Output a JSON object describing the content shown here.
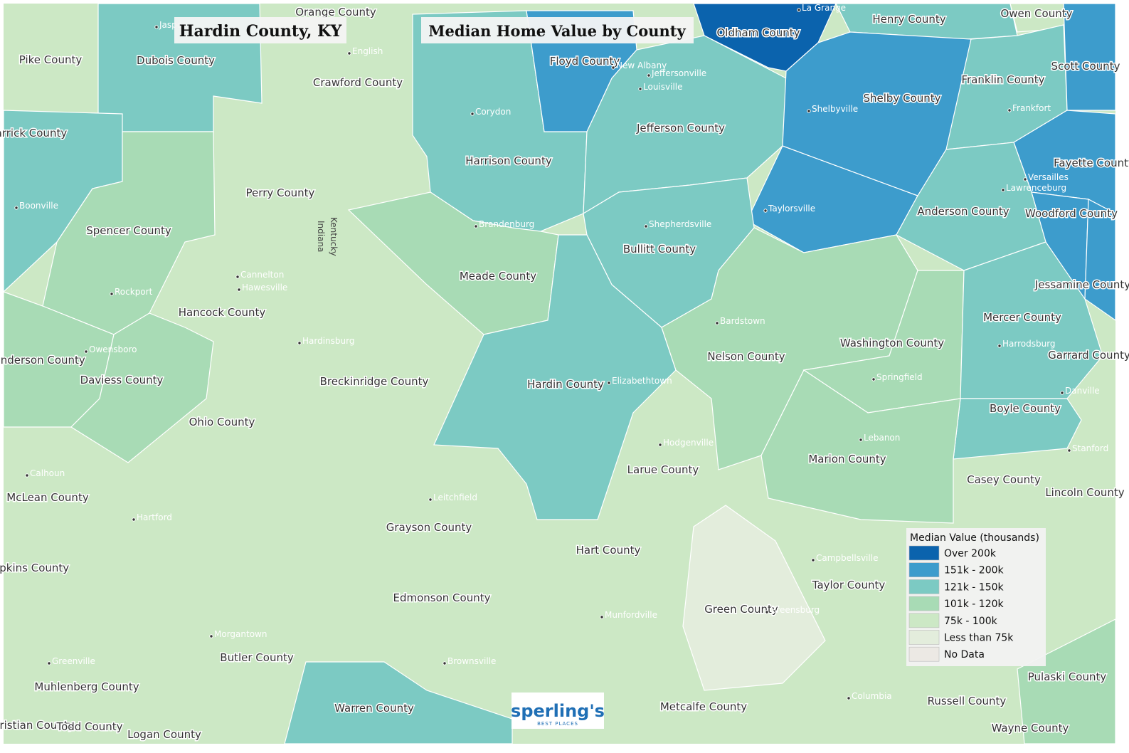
{
  "header": {
    "title": "Hardin County, KY",
    "subtitle": "Median Home Value by County"
  },
  "map": {
    "counties": [
      {
        "name": "Pike County",
        "color": "#cce8c5"
      },
      {
        "name": "Dubois County",
        "color": "#7ccac3"
      },
      {
        "name": "Orange County",
        "color": "#cce8c5"
      },
      {
        "name": "Crawford County",
        "color": "#cce8c5"
      },
      {
        "name": "Warrick County",
        "color": "#7ccac3"
      },
      {
        "name": "Spencer County",
        "color": "#a8dbb5"
      },
      {
        "name": "Perry County",
        "color": "#cce8c5"
      },
      {
        "name": "Harrison County",
        "color": "#7ccac3"
      },
      {
        "name": "Floyd County",
        "color": "#3d9ccc"
      },
      {
        "name": "Oldham County",
        "color": "#0b63ad"
      },
      {
        "name": "Henry County",
        "color": "#7ccac3"
      },
      {
        "name": "Owen County",
        "color": "#cce8c5"
      },
      {
        "name": "Jefferson County",
        "color": "#7ccac3"
      },
      {
        "name": "Shelby County",
        "color": "#3d9ccc"
      },
      {
        "name": "Franklin County",
        "color": "#7ccac3"
      },
      {
        "name": "Scott County",
        "color": "#3d9ccc"
      },
      {
        "name": "Fayette County",
        "color": "#3d9ccc"
      },
      {
        "name": "Woodford County",
        "color": "#3d9ccc"
      },
      {
        "name": "Jessamine County",
        "color": "#3d9ccc"
      },
      {
        "name": "Anderson County",
        "color": "#7ccac3"
      },
      {
        "name": "Bullitt County",
        "color": "#7ccac3"
      },
      {
        "name": "Meade County",
        "color": "#a8dbb5"
      },
      {
        "name": "Hardin County",
        "color": "#7ccac3"
      },
      {
        "name": "Nelson County",
        "color": "#a8dbb5"
      },
      {
        "name": "Washington County",
        "color": "#a8dbb5"
      },
      {
        "name": "Mercer County",
        "color": "#7ccac3"
      },
      {
        "name": "Garrard County",
        "color": "#cce8c5"
      },
      {
        "name": "Boyle County",
        "color": "#7ccac3"
      },
      {
        "name": "Marion County",
        "color": "#a8dbb5"
      },
      {
        "name": "Larue County",
        "color": "#cce8c5"
      },
      {
        "name": "Hancock County",
        "color": "#cce8c5"
      },
      {
        "name": "Henderson County",
        "color": "#a8dbb5"
      },
      {
        "name": "Daviess County",
        "color": "#a8dbb5"
      },
      {
        "name": "Breckinridge County",
        "color": "#cce8c5"
      },
      {
        "name": "Ohio County",
        "color": "#cce8c5"
      },
      {
        "name": "McLean County",
        "color": "#cce8c5"
      },
      {
        "name": "Grayson County",
        "color": "#cce8c5"
      },
      {
        "name": "Hart County",
        "color": "#cce8c5"
      },
      {
        "name": "Taylor County",
        "color": "#cce8c5"
      },
      {
        "name": "Casey County",
        "color": "#cce8c5"
      },
      {
        "name": "Lincoln County",
        "color": "#cce8c5"
      },
      {
        "name": "Green County",
        "color": "#e3eddc"
      },
      {
        "name": "Hopkins County",
        "color": "#cce8c5"
      },
      {
        "name": "Edmonson County",
        "color": "#cce8c5"
      },
      {
        "name": "Butler County",
        "color": "#cce8c5"
      },
      {
        "name": "Muhlenberg County",
        "color": "#cce8c5"
      },
      {
        "name": "Warren County",
        "color": "#7ccac3"
      },
      {
        "name": "Metcalfe County",
        "color": "#cce8c5"
      },
      {
        "name": "Russell County",
        "color": "#cce8c5"
      },
      {
        "name": "Pulaski County",
        "color": "#a8dbb5"
      },
      {
        "name": "Wayne County",
        "color": "#cce8c5"
      },
      {
        "name": "Christian County",
        "color": "#cce8c5"
      },
      {
        "name": "Todd County",
        "color": "#cce8c5"
      },
      {
        "name": "Logan County",
        "color": "#cce8c5"
      }
    ],
    "cities": [
      "Jasper",
      "La Grange",
      "English",
      "New Albany",
      "Jeffersonville",
      "Louisville",
      "Corydon",
      "Shelbyville",
      "Frankfort",
      "Boonville",
      "Versailles",
      "Lawrenceburg",
      "Brandenburg",
      "Shepherdsville",
      "Taylorsville",
      "Cannelton",
      "Hawesville",
      "Rockport",
      "Owensboro",
      "Bardstown",
      "Hardinsburg",
      "Elizabethtown",
      "Harrodsburg",
      "Springfield",
      "Danville",
      "Hodgenville",
      "Lebanon",
      "Stanford",
      "Calhoun",
      "Hartford",
      "Leitchfield",
      "Campbellsville",
      "Greensburg",
      "Munfordville",
      "Morgantown",
      "Greenville",
      "Brownsville",
      "Columbia"
    ],
    "state_labels": [
      "Kentucky",
      "Indiana"
    ]
  },
  "legend": {
    "title": "Median Value (thousands)",
    "items": [
      {
        "label": "Over 200k",
        "color": "#0b63ad"
      },
      {
        "label": "151k - 200k",
        "color": "#3d9ccc"
      },
      {
        "label": "121k - 150k",
        "color": "#7ccac3"
      },
      {
        "label": "101k - 120k",
        "color": "#a8dbb5"
      },
      {
        "label": "75k - 100k",
        "color": "#cce8c5"
      },
      {
        "label": "Less than 75k",
        "color": "#e3eddc"
      },
      {
        "label": "No Data",
        "color": "#ece9e4"
      }
    ]
  },
  "logo": {
    "name": "sperling's",
    "tagline": "BEST PLACES"
  }
}
